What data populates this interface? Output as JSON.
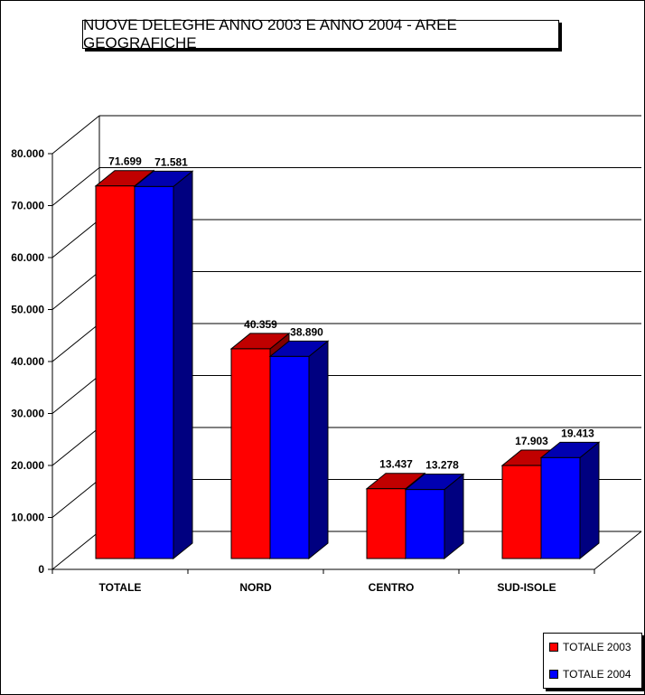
{
  "chart_data": {
    "type": "bar",
    "title": "NUOVE DELEGHE ANNO 2003 E ANNO 2004 - AREE GEOGRAFICHE",
    "categories": [
      "TOTALE",
      "NORD",
      "CENTRO",
      "SUD-ISOLE"
    ],
    "series": [
      {
        "name": "TOTALE 2003",
        "color": "#ff0000",
        "values": [
          71699,
          40359,
          13437,
          17903
        ],
        "labels": [
          "71.699",
          "40.359",
          "13.437",
          "17.903"
        ]
      },
      {
        "name": "TOTALE 2004",
        "color": "#0000ff",
        "values": [
          71581,
          38890,
          13278,
          19413
        ],
        "labels": [
          "71.581",
          "38.890",
          "13.278",
          "19.413"
        ]
      }
    ],
    "ylim": [
      0,
      80000
    ],
    "yticks": [
      0,
      10000,
      20000,
      30000,
      40000,
      50000,
      60000,
      70000,
      80000
    ],
    "ytick_labels": [
      "0",
      "10.000",
      "20.000",
      "30.000",
      "40.000",
      "50.000",
      "60.000",
      "70.000",
      "80.000"
    ],
    "grid": true,
    "legend_position": "bottom-right",
    "style": "3d-clustered"
  }
}
